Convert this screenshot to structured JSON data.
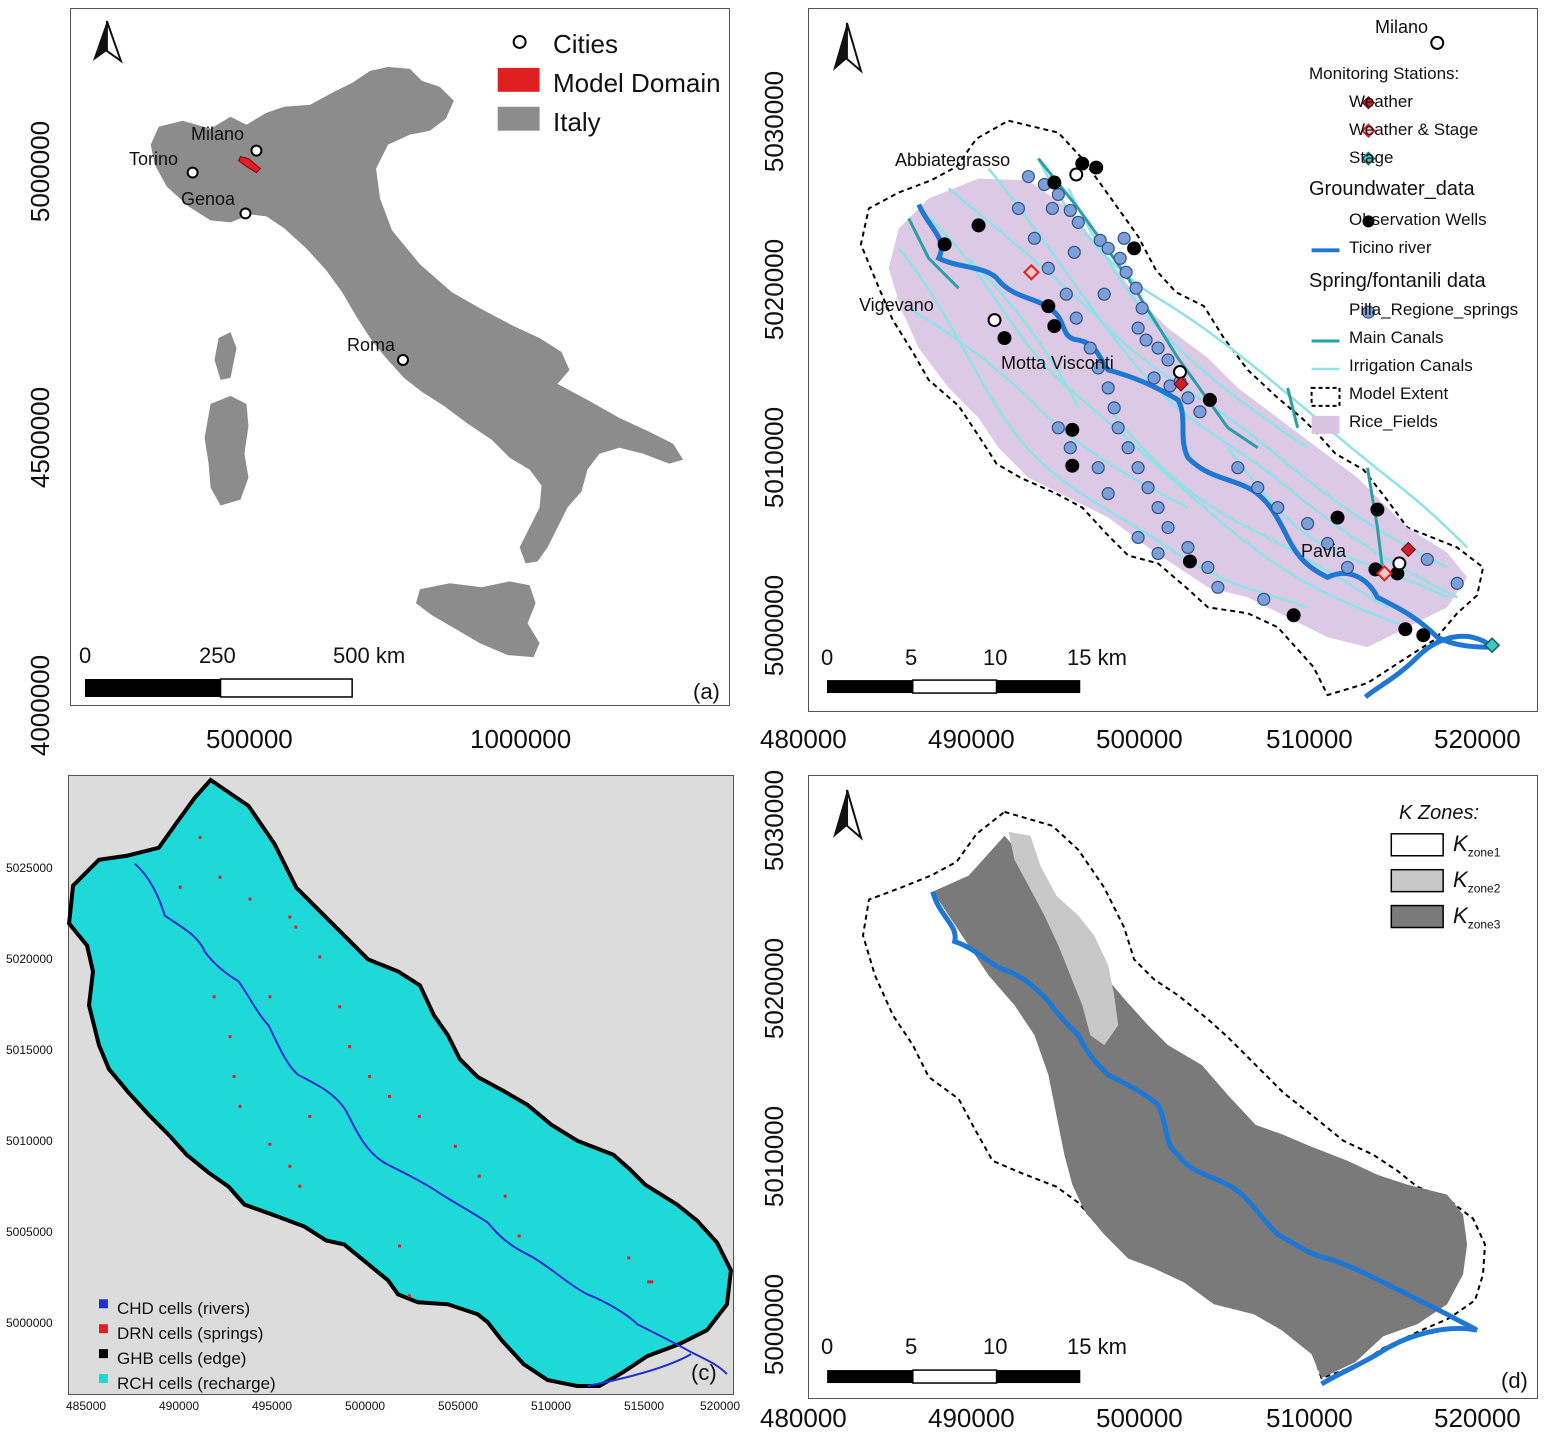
{
  "panel_a": {
    "label": "(a)",
    "legend": [
      {
        "name": "Cities",
        "symbol": "open-circle"
      },
      {
        "name": "Model Domain",
        "color": "#e02020"
      },
      {
        "name": "Italy",
        "color": "#8c8c8c"
      }
    ],
    "cities": [
      "Milano",
      "Torino",
      "Genoa",
      "Roma"
    ],
    "scale": {
      "labels": [
        "0",
        "250",
        "500 km"
      ]
    },
    "x_ticks": [
      "500000",
      "1000000"
    ],
    "y_ticks": [
      "5000000",
      "4500000",
      "4000000"
    ],
    "north_arrow": "north-arrow-icon",
    "land_color": "#8c8c8c",
    "domain_color": "#e02020"
  },
  "panel_b": {
    "label": "",
    "cities": [
      "Milano",
      "Abbiategrasso",
      "Vigevano",
      "Motta Visconti",
      "Pavia"
    ],
    "legend": {
      "monitoring_title": "Monitoring Stations:",
      "monitoring": [
        {
          "name": "Weather",
          "color": "#cc1f2f"
        },
        {
          "name": "Weather & Stage",
          "color": "#f0a0a0"
        },
        {
          "name": "Stage",
          "color": "#40c8c0"
        }
      ],
      "groundwater_title": "Groundwater_data",
      "groundwater": [
        {
          "name": "Observation Wells",
          "color": "#000000"
        },
        {
          "name": "Ticino river",
          "color": "#1f77d4"
        }
      ],
      "spring_title": "Spring/fontanili data",
      "spring": [
        {
          "name": "Pilla_Regione_springs",
          "color": "#7b9fd6"
        },
        {
          "name": "Main Canals",
          "color": "#2a9fa8"
        },
        {
          "name": "Irrigation Canals",
          "color": "#8fe3e8"
        },
        {
          "name": "Model Extent",
          "color": "#000000"
        },
        {
          "name": "Rice_Fields",
          "color": "#d8c3e3"
        }
      ]
    },
    "scale": {
      "labels": [
        "0",
        "5",
        "10",
        "15 km"
      ]
    },
    "x_ticks": [
      "480000",
      "490000",
      "500000",
      "510000",
      "520000"
    ],
    "y_ticks": [
      "5030000",
      "5020000",
      "5010000",
      "5000000"
    ]
  },
  "panel_c": {
    "label": "(c)",
    "legend": [
      {
        "name": "CHD cells (rivers)",
        "color": "#1f2fd0"
      },
      {
        "name": "DRN cells (springs)",
        "color": "#e02020"
      },
      {
        "name": "GHB cells (edge)",
        "color": "#000000"
      },
      {
        "name": "RCH cells (recharge)",
        "color": "#1fd8d8"
      }
    ],
    "x_ticks": [
      "485000",
      "490000",
      "495000",
      "500000",
      "505000",
      "510000",
      "515000",
      "520000"
    ],
    "y_ticks": [
      "5025000",
      "5020000",
      "5015000",
      "5010000",
      "5005000",
      "5000000"
    ]
  },
  "panel_d": {
    "label": "(d)",
    "legend_title": "K Zones:",
    "legend": [
      {
        "name": "K",
        "sub": "zone1",
        "color": "#ffffff"
      },
      {
        "name": "K",
        "sub": "zone2",
        "color": "#c8c8c8"
      },
      {
        "name": "K",
        "sub": "zone3",
        "color": "#7a7a7a"
      }
    ],
    "scale": {
      "labels": [
        "0",
        "5",
        "10",
        "15 km"
      ]
    },
    "x_ticks": [
      "480000",
      "490000",
      "500000",
      "510000",
      "520000"
    ],
    "y_ticks": [
      "5030000",
      "5020000",
      "5010000",
      "5000000"
    ]
  }
}
